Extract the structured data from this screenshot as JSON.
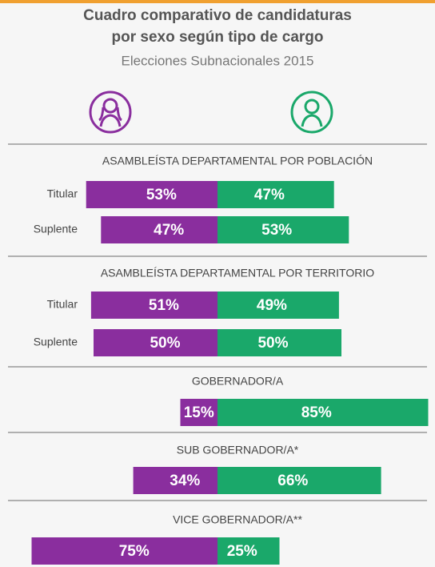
{
  "header": {
    "title": [
      "Cuadro comparativo de candidaturas",
      "por sexo según  tipo de cargo"
    ],
    "subtitle": "Elecciones Subnacionales 2015"
  },
  "chart_data": {
    "type": "diverging_bar",
    "colors": [
      "#8a2e9e",
      "#1aa86a"
    ],
    "sections": [
      {
        "title": "ASAMBLEÍSTA DEPARTAMENTAL POR POBLACIÓN",
        "rows": [
          {
            "label": "Titular",
            "values": [
              53,
              47
            ],
            "value_labels": [
              "53%",
              "47%"
            ]
          },
          {
            "label": "Suplente",
            "values": [
              47,
              53
            ],
            "value_labels": [
              "47%",
              "53%"
            ]
          }
        ]
      },
      {
        "title": "ASAMBLEÍSTA DEPARTAMENTAL POR TERRITORIO",
        "rows": [
          {
            "label": "Titular",
            "values": [
              51,
              49
            ],
            "value_labels": [
              "51%",
              "49%"
            ]
          },
          {
            "label": "Suplente",
            "values": [
              50,
              50
            ],
            "value_labels": [
              "50%",
              "50%"
            ]
          }
        ]
      },
      {
        "title": "GOBERNADOR/A",
        "rows": [
          {
            "values": [
              15,
              85
            ],
            "value_labels": [
              "15%",
              "85%"
            ]
          }
        ]
      },
      {
        "title": "SUB GOBERNADOR/A*",
        "rows": [
          {
            "values": [
              34,
              66
            ],
            "value_labels": [
              "34%",
              "66%"
            ]
          }
        ]
      },
      {
        "title": "VICE GOBERNADOR/A**",
        "rows": [
          {
            "values": [
              75,
              25
            ],
            "value_labels": [
              "75%",
              "25%"
            ]
          }
        ]
      }
    ]
  }
}
